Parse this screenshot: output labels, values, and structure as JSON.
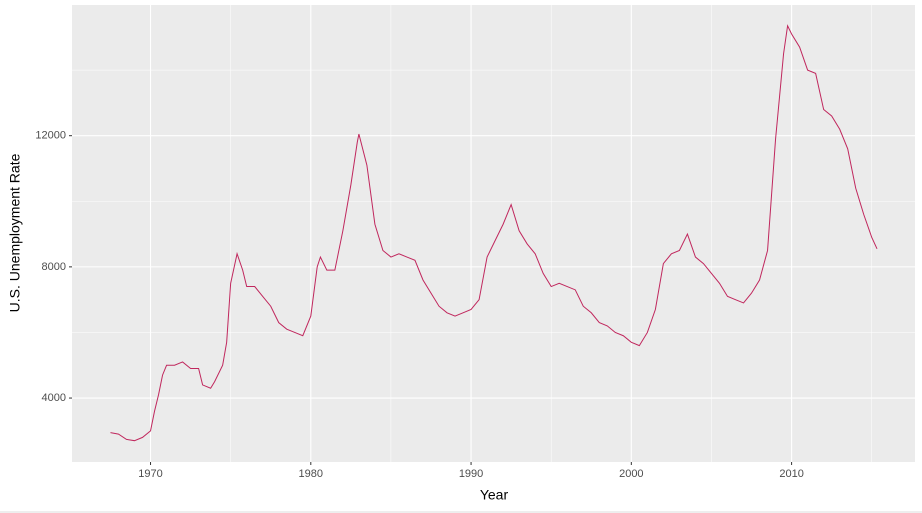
{
  "chart_data": {
    "type": "line",
    "x_label": "Year",
    "y_label": "U.S. Unemployment Rate",
    "x": [
      1967.5,
      1968,
      1968.5,
      1969,
      1969.5,
      1970,
      1970.25,
      1970.5,
      1970.75,
      1971,
      1971.5,
      1972,
      1972.5,
      1973,
      1973.25,
      1973.75,
      1974,
      1974.5,
      1974.75,
      1975,
      1975.4,
      1975.75,
      1976,
      1976.5,
      1977,
      1977.5,
      1978,
      1978.5,
      1979,
      1979.5,
      1980,
      1980.4,
      1980.6,
      1981,
      1981.5,
      1982,
      1982.5,
      1982.9,
      1983,
      1983.5,
      1984,
      1984.5,
      1985,
      1985.5,
      1986,
      1986.5,
      1987,
      1987.5,
      1988,
      1988.5,
      1989,
      1989.5,
      1990,
      1990.5,
      1991,
      1991.5,
      1992,
      1992.5,
      1993,
      1993.5,
      1994,
      1994.5,
      1995,
      1995.5,
      1996,
      1996.5,
      1997,
      1997.5,
      1998,
      1998.5,
      1999,
      1999.5,
      2000,
      2000.5,
      2001,
      2001.5,
      2002,
      2002.5,
      2003,
      2003.5,
      2004,
      2004.5,
      2005,
      2005.5,
      2006,
      2006.5,
      2007,
      2007.5,
      2008,
      2008.5,
      2009,
      2009.5,
      2009.75,
      2010,
      2010.5,
      2011,
      2011.5,
      2012,
      2012.5,
      2013,
      2013.5,
      2014,
      2014.5,
      2015,
      2015.33
    ],
    "values": [
      2945,
      2900,
      2740,
      2700,
      2800,
      3000,
      3600,
      4100,
      4700,
      5000,
      5000,
      5100,
      4900,
      4900,
      4400,
      4300,
      4500,
      5000,
      5700,
      7500,
      8400,
      7900,
      7400,
      7400,
      7100,
      6800,
      6300,
      6100,
      6000,
      5900,
      6500,
      8000,
      8300,
      7900,
      7900,
      9100,
      10500,
      11800,
      12050,
      11100,
      9300,
      8500,
      8300,
      8400,
      8300,
      8200,
      7600,
      7200,
      6800,
      6600,
      6500,
      6600,
      6700,
      7000,
      8300,
      8800,
      9300,
      9900,
      9100,
      8700,
      8400,
      7800,
      7400,
      7500,
      7400,
      7300,
      6800,
      6600,
      6300,
      6200,
      6000,
      5900,
      5700,
      5600,
      6000,
      6700,
      8100,
      8400,
      8500,
      9000,
      8300,
      8100,
      7800,
      7500,
      7100,
      7000,
      6900,
      7200,
      7600,
      8500,
      11900,
      14500,
      15350,
      15100,
      14700,
      14000,
      13900,
      12800,
      12600,
      12200,
      11600,
      10400,
      9600,
      8900,
      8550
    ],
    "color": "#c0275d",
    "xlim": [
      1965.1,
      2017.7
    ],
    "xticks": [
      1970,
      1980,
      1990,
      2000,
      2010
    ],
    "minor_xticks": [
      1965,
      1975,
      1985,
      1995,
      2005,
      2015
    ],
    "ylim": [
      2050,
      15985
    ],
    "yticks": [
      4000,
      8000,
      12000
    ],
    "minor_yticks": [
      6000,
      10000,
      14000
    ],
    "grid": true
  }
}
